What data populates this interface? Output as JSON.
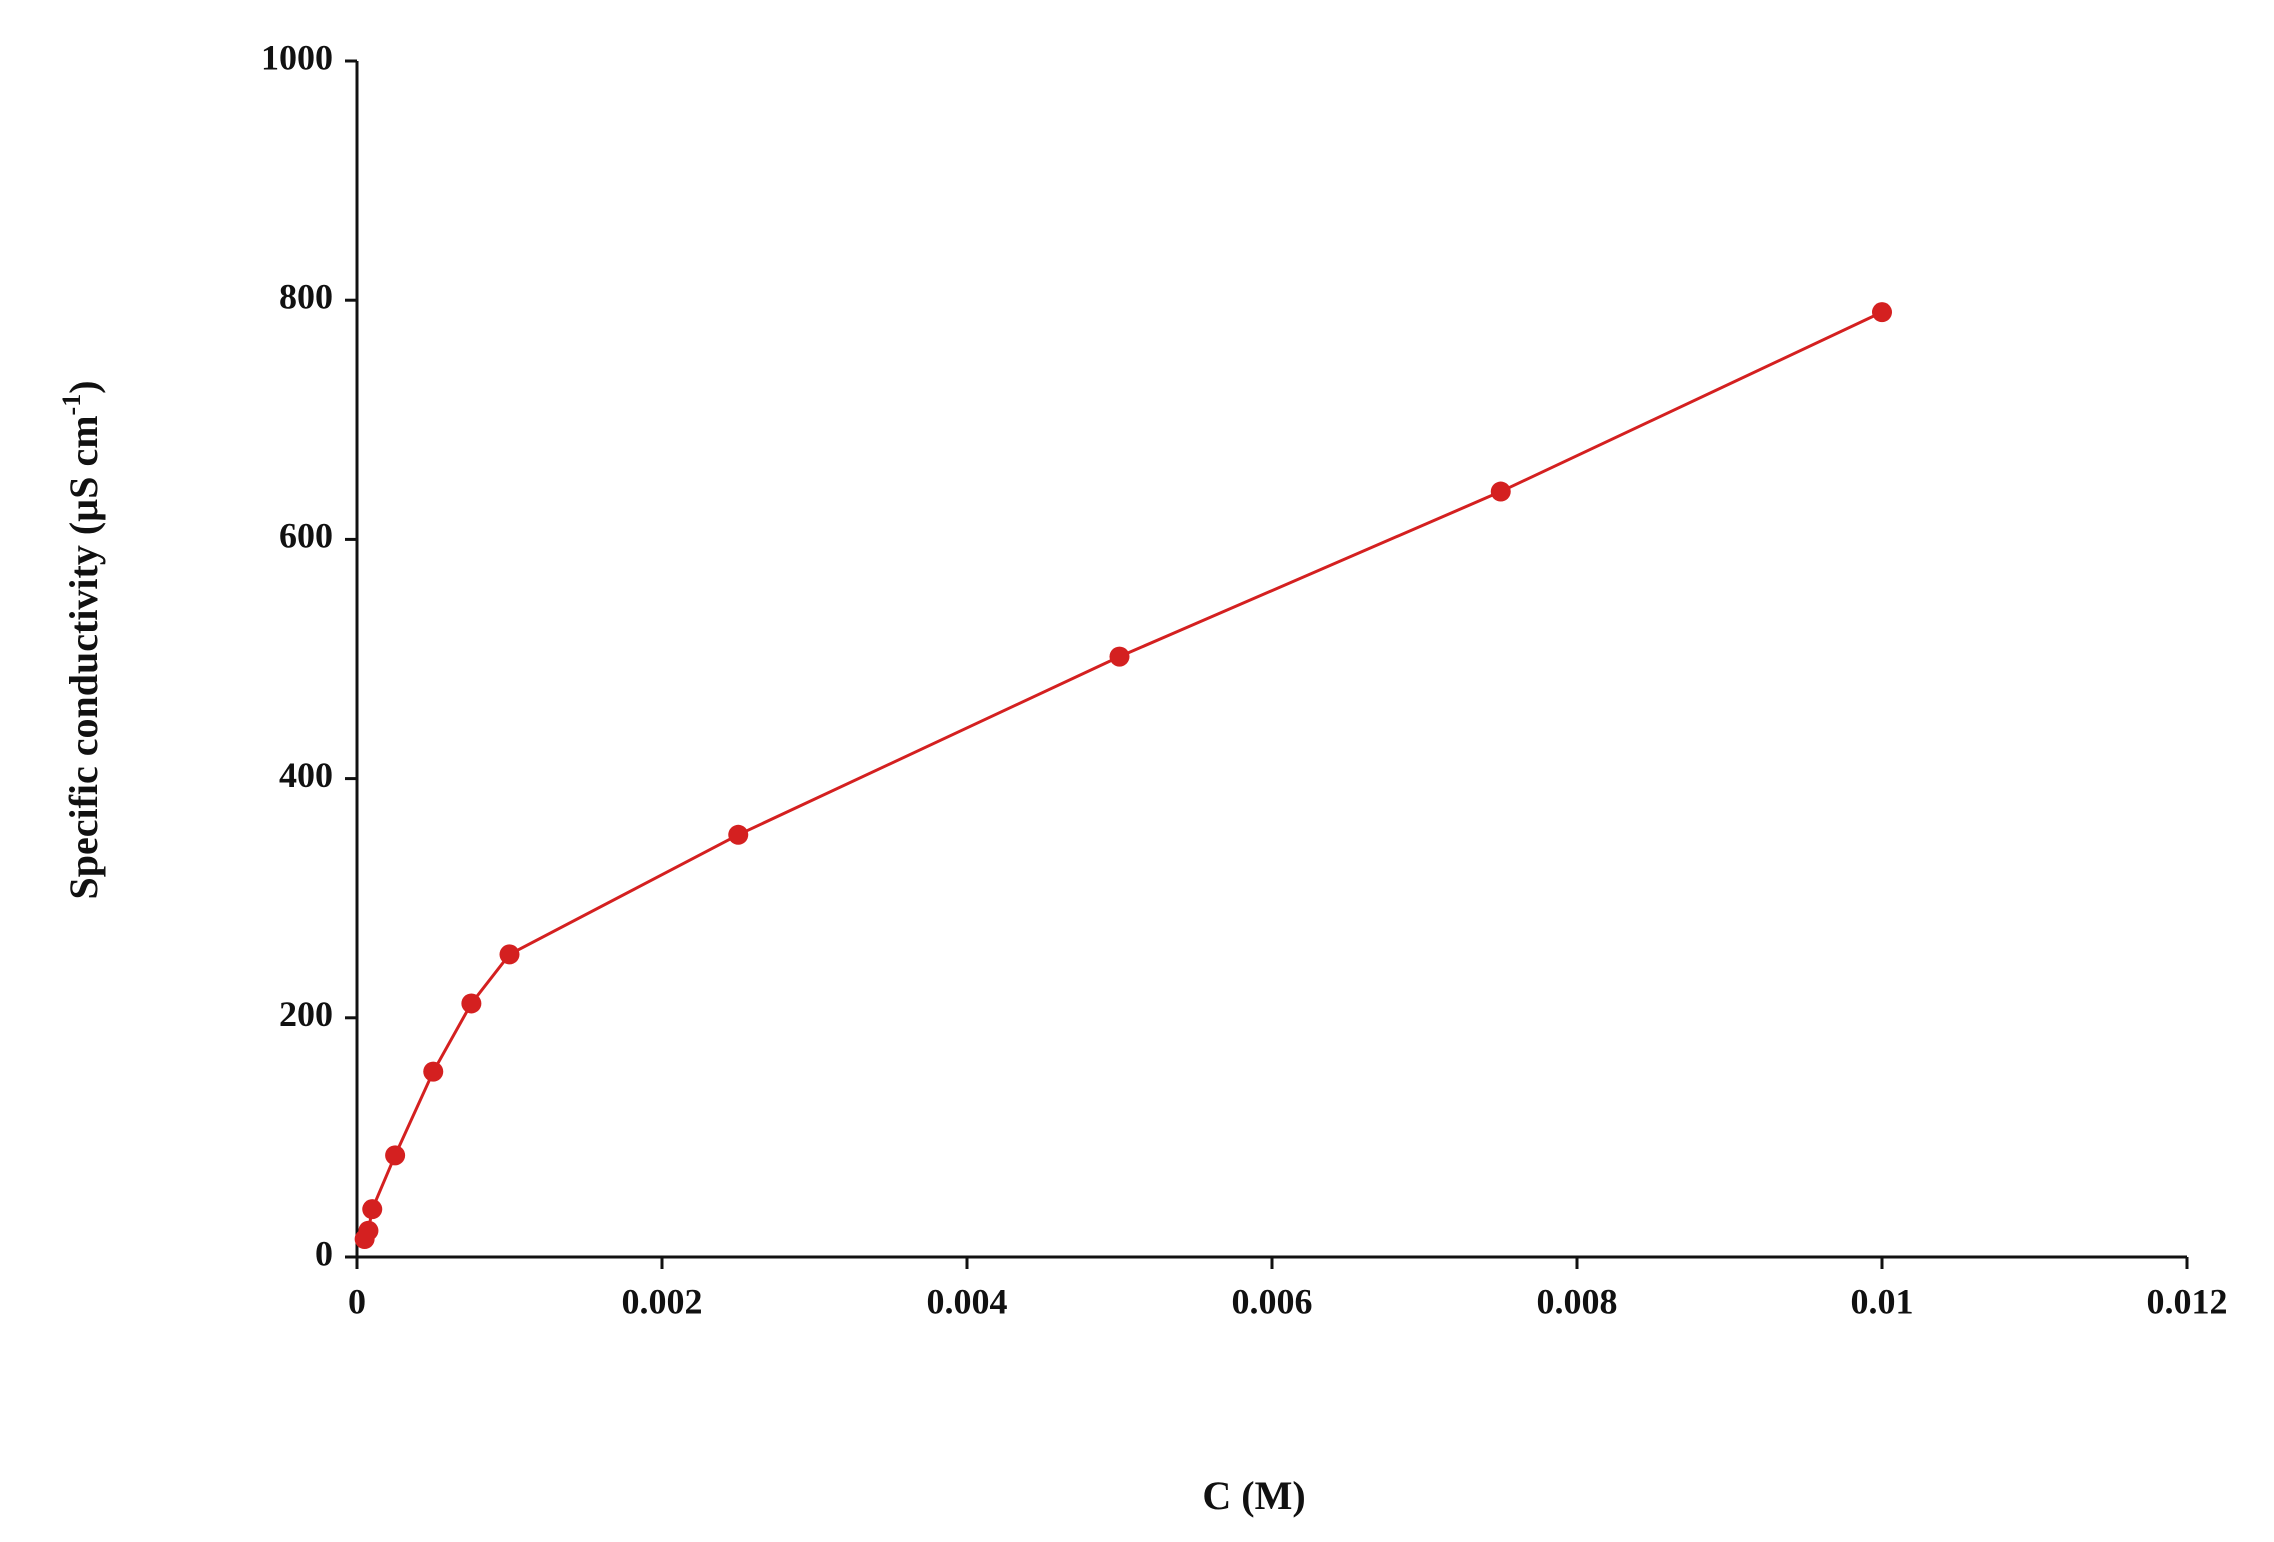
{
  "chart_data": {
    "type": "line",
    "xlabel": "C (M)",
    "ylabel": [
      "Specific conductivity (µS cm",
      "-1",
      ")"
    ],
    "x": [
      5e-05,
      7.5e-05,
      0.0001,
      0.00025,
      0.0005,
      0.00075,
      0.001,
      0.0025,
      0.005,
      0.0075,
      0.01
    ],
    "series": [
      {
        "color": "#d42020",
        "values": [
          15,
          22,
          40,
          85,
          155,
          212,
          253,
          353,
          502,
          640,
          790
        ]
      }
    ],
    "xlim": [
      0,
      0.012
    ],
    "xticks": [
      0,
      0.002,
      0.004,
      0.006,
      0.008,
      0.01,
      0.012
    ],
    "ylim": [
      0,
      1000
    ],
    "yticks": [
      0,
      200,
      400,
      600,
      800,
      1000
    ],
    "grid": false
  }
}
